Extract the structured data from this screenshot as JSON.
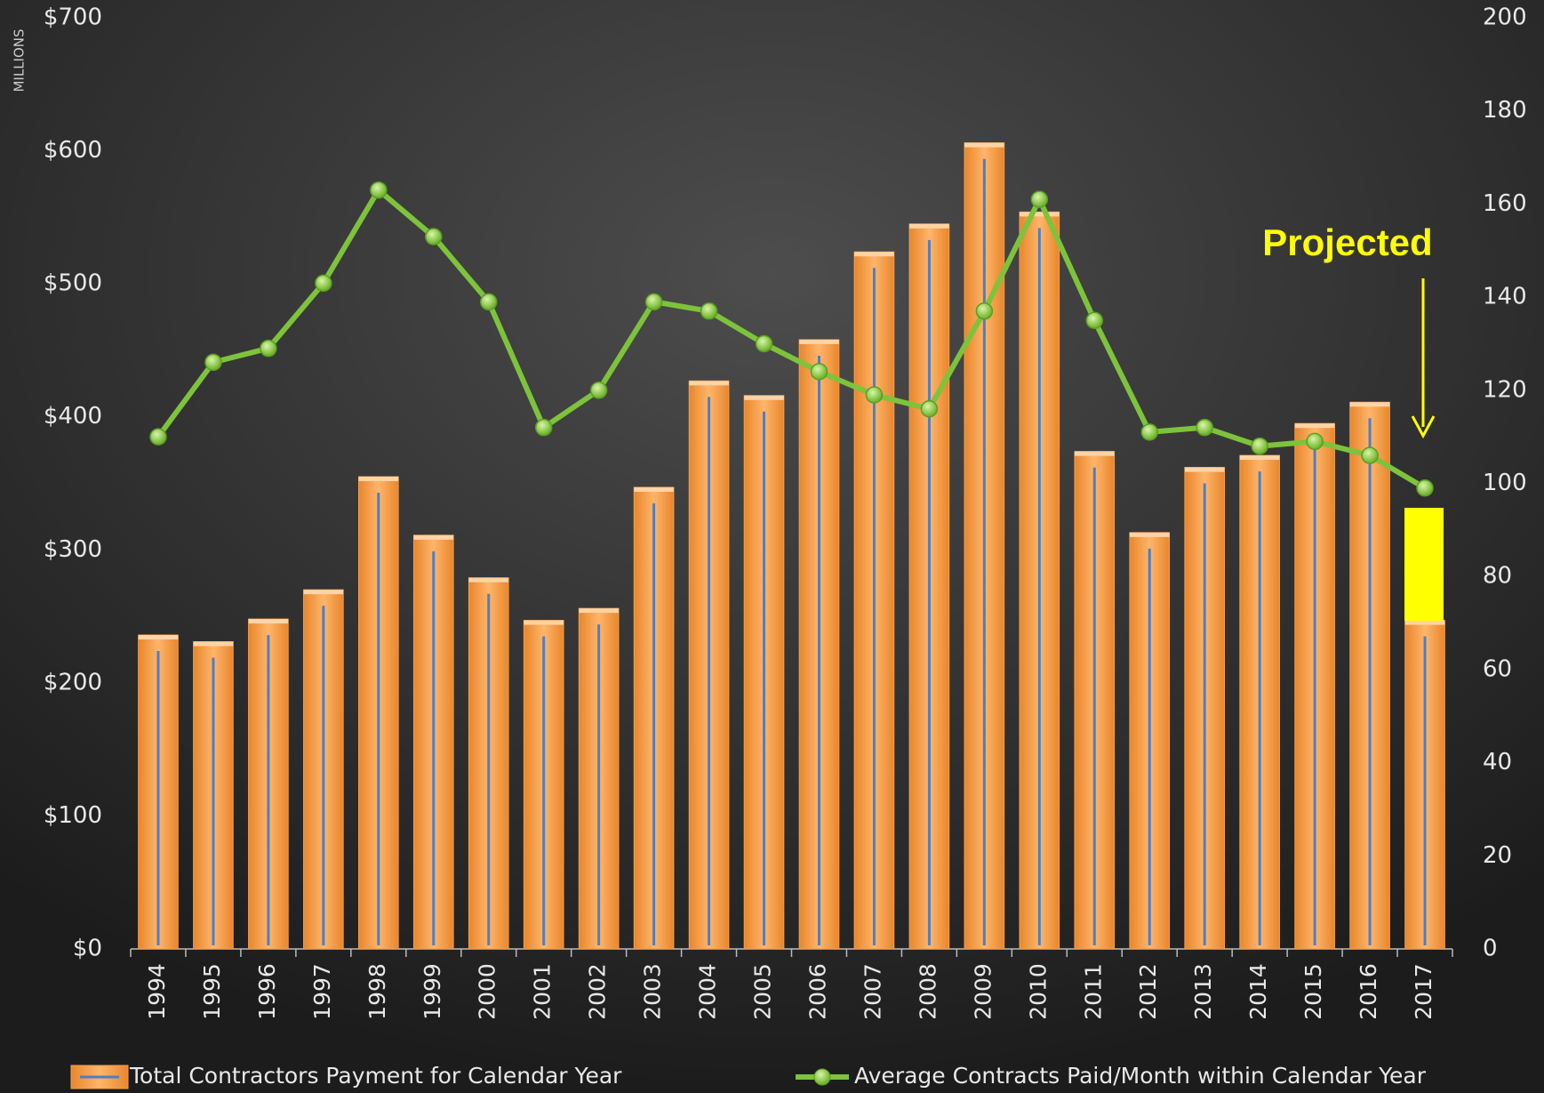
{
  "chart_data": {
    "type": "bar-line",
    "categories": [
      "1994",
      "1995",
      "1996",
      "1997",
      "1998",
      "1999",
      "2000",
      "2001",
      "2002",
      "2003",
      "2004",
      "2005",
      "2006",
      "2007",
      "2008",
      "2009",
      "2010",
      "2011",
      "2012",
      "2013",
      "2014",
      "2015",
      "2016",
      "2017"
    ],
    "series": [
      {
        "name": "Total Contractors Payment for Calendar Year",
        "type": "bar",
        "color": "#f7a04a",
        "axis": "y",
        "values": [
          236,
          231,
          248,
          270,
          355,
          311,
          279,
          247,
          256,
          347,
          427,
          416,
          458,
          524,
          545,
          606,
          554,
          374,
          313,
          362,
          371,
          395,
          411,
          247
        ]
      },
      {
        "name": "Average Contracts Paid/Month within Calendar Year",
        "type": "line",
        "color": "#7dc33b",
        "axis": "y2",
        "values": [
          110,
          126,
          129,
          143,
          163,
          153,
          139,
          112,
          120,
          139,
          137,
          130,
          124,
          119,
          116,
          137,
          161,
          135,
          111,
          112,
          108,
          109,
          106,
          99
        ]
      }
    ],
    "ylim": [
      0,
      700
    ],
    "yticks": [
      {
        "value": 0,
        "label": "$0"
      },
      {
        "value": 100,
        "label": "$100"
      },
      {
        "value": 200,
        "label": "$200"
      },
      {
        "value": 300,
        "label": "$300"
      },
      {
        "value": 400,
        "label": "$400"
      },
      {
        "value": 500,
        "label": "$500"
      },
      {
        "value": 600,
        "label": "$600"
      },
      {
        "value": 700,
        "label": "$700"
      }
    ],
    "y_unit_label": "MILLIONS",
    "y2lim": [
      0,
      200
    ],
    "y2ticks": [
      0,
      20,
      40,
      60,
      80,
      100,
      120,
      140,
      160,
      180,
      200
    ],
    "annotation": "Projected",
    "legend": "bottom"
  }
}
